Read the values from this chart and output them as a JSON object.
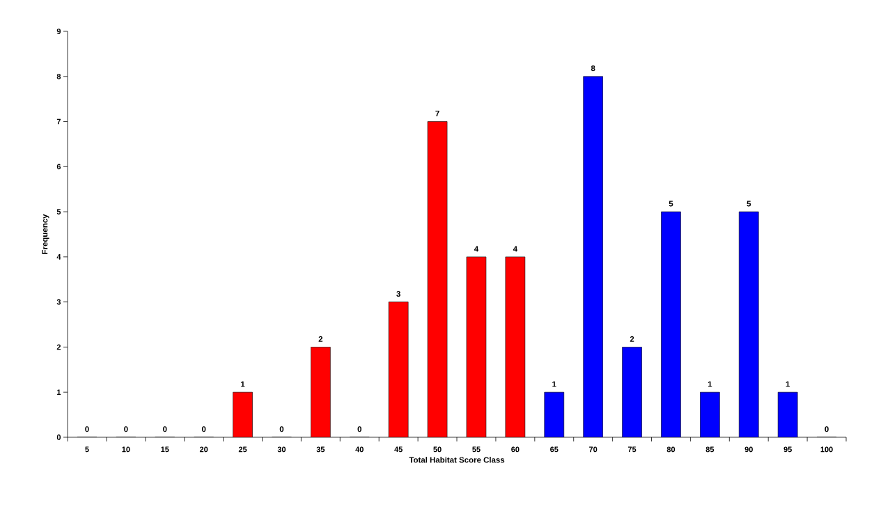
{
  "chart_data": {
    "type": "bar",
    "xlabel": "Total Habitat Score Class",
    "ylabel": "Frequency",
    "categories": [
      "5",
      "10",
      "15",
      "20",
      "25",
      "30",
      "35",
      "40",
      "45",
      "50",
      "55",
      "60",
      "65",
      "70",
      "75",
      "80",
      "85",
      "90",
      "95",
      "100"
    ],
    "values": [
      0,
      0,
      0,
      0,
      1,
      0,
      2,
      0,
      3,
      7,
      4,
      4,
      1,
      8,
      2,
      5,
      1,
      5,
      1,
      0
    ],
    "colors": [
      "#ff0000",
      "#ff0000",
      "#ff0000",
      "#ff0000",
      "#ff0000",
      "#ff0000",
      "#ff0000",
      "#ff0000",
      "#ff0000",
      "#ff0000",
      "#ff0000",
      "#ff0000",
      "#0000ff",
      "#0000ff",
      "#0000ff",
      "#0000ff",
      "#0000ff",
      "#0000ff",
      "#0000ff",
      "#0000ff"
    ],
    "ylim": [
      0,
      9
    ],
    "yticks": [
      0,
      1,
      2,
      3,
      4,
      5,
      6,
      7,
      8,
      9
    ],
    "data_labels": true
  }
}
